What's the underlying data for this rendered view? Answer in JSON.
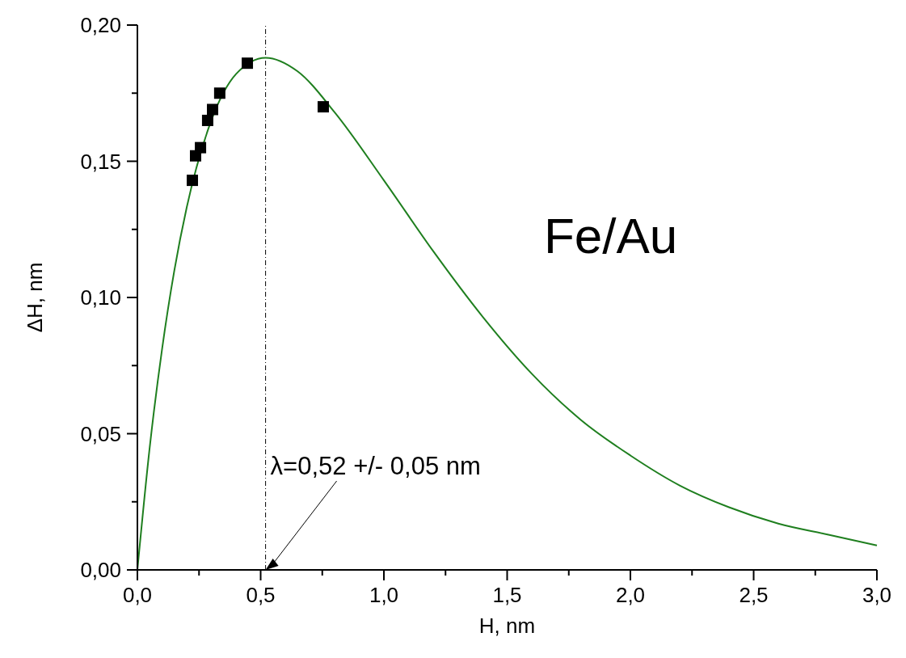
{
  "chart_data": {
    "type": "scatter",
    "xlabel": "H, nm",
    "ylabel": "ΔH, nm",
    "xlim": [
      0,
      3
    ],
    "ylim": [
      0,
      0.2
    ],
    "xticks": [
      {
        "value": 0,
        "label": "0,0"
      },
      {
        "value": 0.25,
        "label": null
      },
      {
        "value": 0.5,
        "label": "0,5"
      },
      {
        "value": 0.75,
        "label": null
      },
      {
        "value": 1,
        "label": "1,0"
      },
      {
        "value": 1.25,
        "label": null
      },
      {
        "value": 1.5,
        "label": "1,5"
      },
      {
        "value": 1.75,
        "label": null
      },
      {
        "value": 2,
        "label": "2,0"
      },
      {
        "value": 2.25,
        "label": null
      },
      {
        "value": 2.5,
        "label": "2,5"
      },
      {
        "value": 2.75,
        "label": null
      },
      {
        "value": 3,
        "label": "3,0"
      }
    ],
    "yticks": [
      {
        "value": 0,
        "label": "0,00"
      },
      {
        "value": 0.025,
        "label": null
      },
      {
        "value": 0.05,
        "label": "0,05"
      },
      {
        "value": 0.075,
        "label": null
      },
      {
        "value": 0.1,
        "label": "0,10"
      },
      {
        "value": 0.125,
        "label": null
      },
      {
        "value": 0.15,
        "label": "0,15"
      },
      {
        "value": 0.175,
        "label": null
      },
      {
        "value": 0.2,
        "label": "0,20"
      }
    ],
    "grid": false,
    "series": [
      {
        "marker": "square",
        "color": "#000000",
        "x": [
          0.223,
          0.236,
          0.256,
          0.285,
          0.305,
          0.334,
          0.446,
          0.754
        ],
        "values": [
          0.143,
          0.152,
          0.155,
          0.165,
          0.169,
          0.175,
          0.186,
          0.17
        ]
      },
      {
        "type": "line",
        "marker": "none",
        "line_style": "solid",
        "color": "#1f7f1f",
        "x": [
          0,
          0.05,
          0.1,
          0.15,
          0.2,
          0.3,
          0.4,
          0.52,
          0.65,
          0.8,
          1.0,
          1.2,
          1.4,
          1.6,
          1.8,
          2.0,
          2.2,
          2.4,
          2.6,
          2.8,
          3.0
        ],
        "values": [
          0,
          0.045,
          0.081,
          0.11,
          0.133,
          0.165,
          0.182,
          0.188,
          0.183,
          0.168,
          0.143,
          0.117,
          0.093,
          0.072,
          0.055,
          0.042,
          0.031,
          0.023,
          0.017,
          0.013,
          0.009
        ]
      }
    ],
    "ref_lines": [
      {
        "axis": "x",
        "value": 0.52,
        "color": "#000000",
        "line_style": "dashdot"
      }
    ],
    "annotations": [
      "λ=0,52 +/- 0,05 nm",
      "Fe/Au"
    ]
  }
}
